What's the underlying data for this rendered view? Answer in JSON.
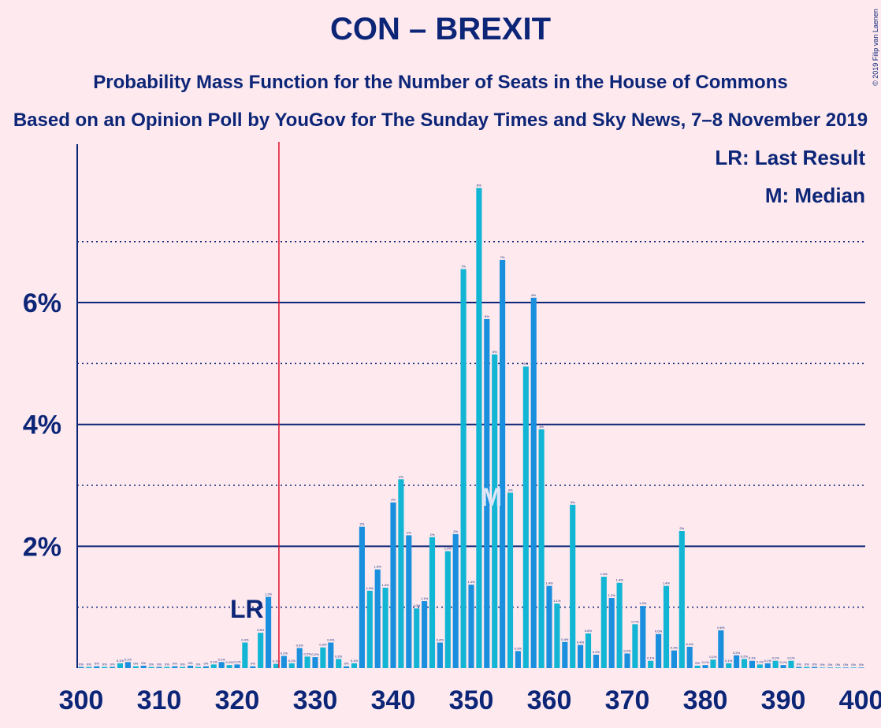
{
  "chart_data": {
    "type": "bar",
    "title": "CON – BREXIT",
    "subtitle": "Probability Mass Function for the Number of Seats in the House of Commons",
    "subtitle2": "Based on an Opinion Poll by YouGov for The Sunday Times and Sky News, 7–8 November 2019",
    "copyright": "© 2019 Filip van Laenen",
    "legend": [
      "LR: Last Result",
      "M: Median"
    ],
    "last_result": 325,
    "last_result_label": "LR",
    "median": 353,
    "median_label": "M",
    "xlim": [
      299.5,
      400.5
    ],
    "xticks": [
      300,
      310,
      320,
      330,
      340,
      350,
      360,
      370,
      380,
      390,
      400
    ],
    "ylim": [
      0,
      8.6
    ],
    "yticks": [
      {
        "value": 2,
        "label": "2%"
      },
      {
        "value": 4,
        "label": "4%"
      },
      {
        "value": 6,
        "label": "6%"
      }
    ],
    "minor_grid": [
      1,
      3,
      5,
      7
    ],
    "colors": [
      "#1a8fde",
      "#12b6d4"
    ],
    "x": [
      300,
      301,
      302,
      303,
      304,
      305,
      306,
      307,
      308,
      309,
      310,
      311,
      312,
      313,
      314,
      315,
      316,
      317,
      318,
      319,
      320,
      321,
      322,
      323,
      324,
      325,
      326,
      327,
      328,
      329,
      330,
      331,
      332,
      333,
      334,
      335,
      336,
      337,
      338,
      339,
      340,
      341,
      342,
      343,
      344,
      345,
      346,
      347,
      348,
      349,
      350,
      351,
      352,
      353,
      354,
      355,
      356,
      357,
      358,
      359,
      360,
      361,
      362,
      363,
      364,
      365,
      366,
      367,
      368,
      369,
      370,
      371,
      372,
      373,
      374,
      375,
      376,
      377,
      378,
      379,
      380,
      381,
      382,
      383,
      384,
      385,
      386,
      387,
      388,
      389,
      390,
      391,
      392,
      393,
      394,
      395,
      396,
      397,
      398,
      399,
      400
    ],
    "values": [
      0.02,
      0.02,
      0.03,
      0.02,
      0.02,
      0.08,
      0.1,
      0.03,
      0.04,
      0.02,
      0.02,
      0.02,
      0.03,
      0.02,
      0.04,
      0.02,
      0.03,
      0.06,
      0.1,
      0.05,
      0.06,
      0.42,
      0.03,
      0.58,
      1.17,
      0.07,
      0.2,
      0.08,
      0.33,
      0.19,
      0.18,
      0.34,
      0.42,
      0.15,
      0.03,
      0.08,
      2.32,
      1.27,
      1.62,
      1.32,
      2.72,
      3.1,
      2.18,
      0.98,
      1.1,
      2.15,
      0.42,
      1.92,
      2.2,
      6.55,
      1.37,
      7.88,
      5.73,
      5.15,
      6.7,
      2.88,
      0.28,
      4.95,
      6.08,
      3.92,
      1.35,
      1.06,
      0.43,
      2.68,
      0.38,
      0.57,
      0.22,
      1.5,
      1.15,
      1.4,
      0.24,
      0.72,
      1.02,
      0.12,
      0.56,
      1.35,
      0.29,
      2.25,
      0.35,
      0.04,
      0.05,
      0.14,
      0.62,
      0.08,
      0.21,
      0.15,
      0.12,
      0.06,
      0.08,
      0.12,
      0.05,
      0.12,
      0.02,
      0.02,
      0.02,
      0.01,
      0.01,
      0.01,
      0.01,
      0.01,
      0.01
    ],
    "value_labels": [
      "0%",
      "0%",
      "0%",
      "0%",
      "0%",
      "0.1%",
      "0.1%",
      "0%",
      "0%",
      "0%",
      "0%",
      "0%",
      "0%",
      "0%",
      "0%",
      "0%",
      "0%",
      "0.1%",
      "0.1%",
      "0.1%",
      "0.1%",
      "0.4%",
      "0%",
      "0.6%",
      "1.2%",
      "0.1%",
      "0.2%",
      "0.1%",
      "0.3%",
      "0.2%",
      "0.2%",
      "0.3%",
      "0.4%",
      "0.2%",
      "0%",
      "0.1%",
      "2%",
      "1.3%",
      "1.6%",
      "1.3%",
      "3%",
      "3%",
      "2%",
      "1.0%",
      "1.1%",
      "2%",
      "0.4%",
      "1.9%",
      "2%",
      "7%",
      "1.4%",
      "8%",
      "6%",
      "5%",
      "7%",
      "3%",
      "0.3%",
      "5%",
      "6%",
      "4%",
      "1.4%",
      "1.1%",
      "0.4%",
      "3%",
      "0.4%",
      "0.6%",
      "0.2%",
      "1.5%",
      "1.2%",
      "1.4%",
      "0.2%",
      "0.7%",
      "1.0%",
      "0.1%",
      "0.6%",
      "1.4%",
      "0.3%",
      "2%",
      "0.4%",
      "0%",
      "0.1%",
      "0.1%",
      "0.6%",
      "0.1%",
      "0.2%",
      "0.2%",
      "0.1%",
      "0.1%",
      "0.1%",
      "0.1%",
      "0.1%",
      "0.1%",
      "0%",
      "0%",
      "0%",
      "0%",
      "0%",
      "0%",
      "0%",
      "0%",
      "0%"
    ]
  }
}
